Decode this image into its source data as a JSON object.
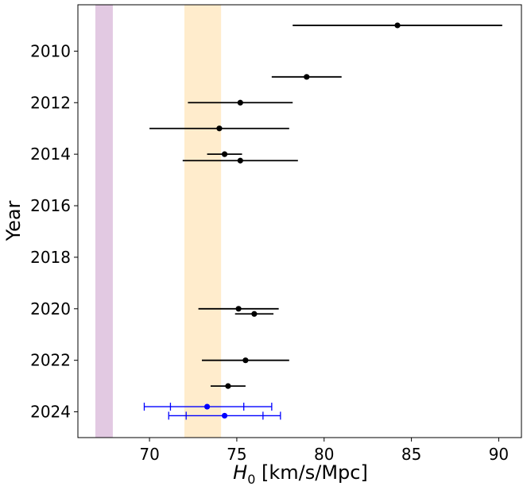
{
  "chart_data": {
    "type": "scatter",
    "title": "",
    "xlabel": "H_0 [km/s/Mpc]",
    "xlabel_main": "H",
    "xlabel_sub": "0",
    "xlabel_rest": " [km/s/Mpc]",
    "ylabel": "Year",
    "xlim": [
      65.9,
      91.3
    ],
    "ylim": [
      2025.0,
      2008.2
    ],
    "y_inverted": true,
    "xticks": [
      70,
      75,
      80,
      85,
      90
    ],
    "yticks": [
      2010,
      2012,
      2014,
      2016,
      2018,
      2020,
      2022,
      2024
    ],
    "grid": false,
    "bands": [
      {
        "x_min": 66.9,
        "x_max": 67.9,
        "color": "#e2c9e2"
      },
      {
        "x_min": 72.0,
        "x_max": 74.1,
        "color": "#ffeccc"
      }
    ],
    "series": [
      {
        "color": "#000000",
        "capsize": false,
        "points": [
          {
            "x": 84.2,
            "y": 2009.0,
            "xerr": [
              6.0,
              6.0
            ]
          },
          {
            "x": 79.0,
            "y": 2011.0,
            "xerr": [
              2.0,
              2.0
            ]
          },
          {
            "x": 75.2,
            "y": 2012.0,
            "xerr": [
              3.0,
              3.0
            ]
          },
          {
            "x": 74.0,
            "y": 2013.0,
            "xerr": [
              4.0,
              4.0
            ]
          },
          {
            "x": 74.3,
            "y": 2014.0,
            "xerr": [
              1.0,
              1.0
            ]
          },
          {
            "x": 75.2,
            "y": 2014.25,
            "xerr": [
              3.3,
              3.3
            ]
          },
          {
            "x": 75.1,
            "y": 2020.0,
            "xerr": [
              2.3,
              2.3
            ]
          },
          {
            "x": 76.0,
            "y": 2020.2,
            "xerr": [
              1.1,
              1.1
            ]
          },
          {
            "x": 75.5,
            "y": 2022.0,
            "xerr": [
              2.5,
              2.5
            ]
          },
          {
            "x": 74.5,
            "y": 2023.0,
            "xerr": [
              1.0,
              1.0
            ]
          }
        ]
      },
      {
        "color": "#0000ff",
        "capsize": true,
        "points": [
          {
            "x": 73.3,
            "y": 2023.8,
            "xerr": [
              3.6,
              3.7
            ],
            "inner_xerr": [
              2.1,
              2.1
            ]
          },
          {
            "x": 74.3,
            "y": 2024.15,
            "xerr": [
              3.2,
              3.2
            ],
            "inner_xerr": [
              2.2,
              2.2
            ]
          }
        ]
      }
    ]
  }
}
